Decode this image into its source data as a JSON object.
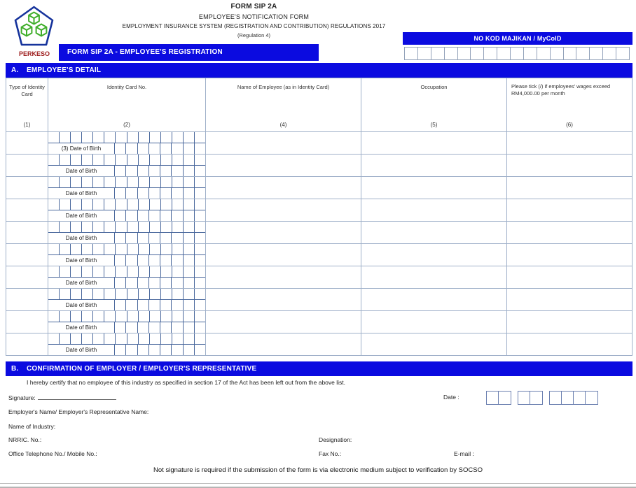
{
  "header": {
    "form_code": "FORM SIP 2A",
    "title": "EMPLOYEE'S NOTIFICATION FORM",
    "subtitle": "EMPLOYMENT INSURANCE SYSTEM (REGISTRATION AND CONTRIBUTION) REGULATIONS 2017",
    "regulation": "(Regulation 4)",
    "logo_text": "PERKESO",
    "employer_code_label": "NO KOD MAJIKAN / MyCoID",
    "employer_code_cells": 17,
    "registration_bar": "FORM SIP 2A - EMPLOYEE'S REGISTRATION"
  },
  "section_a": {
    "prefix": "A.",
    "title": "EMPLOYEE'S DETAIL",
    "columns": [
      {
        "label": "Type of Identity Card",
        "num": "(1)"
      },
      {
        "label": "Identity Card No.",
        "num": "(2)"
      },
      {
        "label": "Name of Employee (as in Identity Card)",
        "num": "(4)"
      },
      {
        "label": "Occupation",
        "num": "(5)"
      },
      {
        "label": "Please tick (/) if employees' wages exceed RM4,000.00 per month",
        "num": "(6)"
      }
    ],
    "ic_cells": 14,
    "dob_cells": 8,
    "rows": [
      {
        "dob_label": "(3) Date of Birth"
      },
      {
        "dob_label": "Date of Birth"
      },
      {
        "dob_label": "Date of Birth"
      },
      {
        "dob_label": "Date of Birth"
      },
      {
        "dob_label": "Date of Birth"
      },
      {
        "dob_label": "Date of Birth"
      },
      {
        "dob_label": "Date of Birth"
      },
      {
        "dob_label": "Date of Birth"
      },
      {
        "dob_label": "Date of Birth"
      },
      {
        "dob_label": "Date of Birth"
      }
    ]
  },
  "section_b": {
    "prefix": "B.",
    "title": "CONFIRMATION OF EMPLOYER / EMPLOYER'S REPRESENTATIVE",
    "certify_text": "I hereby certify that no employee of this industry as specified in section 17 of the Act has been left out from the above list.",
    "signature_label": "Signature:",
    "date_label": "Date :",
    "date_groups": [
      2,
      2,
      4
    ],
    "fields": {
      "employer_name": "Employer's Name/ Employer's Representative Name:",
      "industry": "Name of Industry:",
      "nrric": "NRRIC. No.:",
      "designation": "Designation:",
      "phone": "Office Telephone No./ Mobile No.:",
      "fax": "Fax No.:",
      "email": "E-mail :"
    },
    "footnote": "Not signature is required if the submission of the form is via electronic medium subject to verification by SOCSO"
  },
  "colors": {
    "bar_blue": "#0b0be0",
    "grid_dark_blue": "#49679c",
    "grid_light_blue": "#9fb0c9",
    "logo_green": "#3fae2a",
    "logo_navy": "#16339c",
    "logo_red": "#9c1b1b"
  }
}
